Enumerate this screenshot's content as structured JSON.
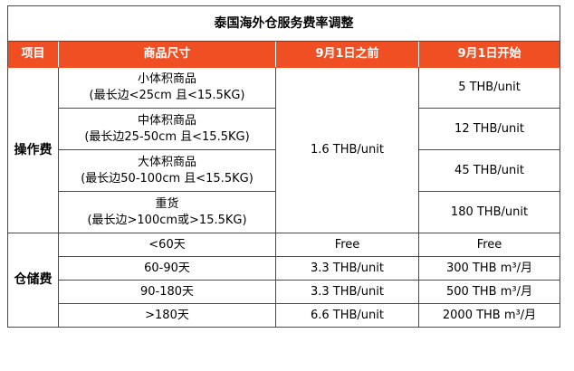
{
  "title": "泰国海外仓服务费率调整",
  "header": {
    "col_item": "项目",
    "col_size": "商品尺寸",
    "col_before": "9月1日之前",
    "col_after": "9月1日开始"
  },
  "colors": {
    "header_bg": "#f04e23",
    "header_text": "#ffffff",
    "border": "#4a4a4a"
  },
  "operation": {
    "label": "操作费",
    "before_price": "1.6 THB/unit",
    "rows": [
      {
        "name": "小体积商品",
        "spec": "(最长边<25cm 且<15.5KG)",
        "after": "5 THB/unit"
      },
      {
        "name": "中体积商品",
        "spec": "(最长边25-50cm 且<15.5KG)",
        "after": "12 THB/unit"
      },
      {
        "name": "大体积商品",
        "spec": "(最长边50-100cm 且<15.5KG)",
        "after": "45 THB/unit"
      },
      {
        "name": "重货",
        "spec": "(最长边>100cm或>15.5KG)",
        "after": "180 THB/unit"
      }
    ]
  },
  "storage": {
    "label": "仓储费",
    "rows": [
      {
        "range": "<60天",
        "before": "Free",
        "after": "Free"
      },
      {
        "range": "60-90天",
        "before": "3.3 THB/unit",
        "after": "300 THB m³/月"
      },
      {
        "range": "90-180天",
        "before": "3.3 THB/unit",
        "after": "500 THB m³/月"
      },
      {
        "range": ">180天",
        "before": "6.6 THB/unit",
        "after": "2000 THB m³/月"
      }
    ]
  }
}
